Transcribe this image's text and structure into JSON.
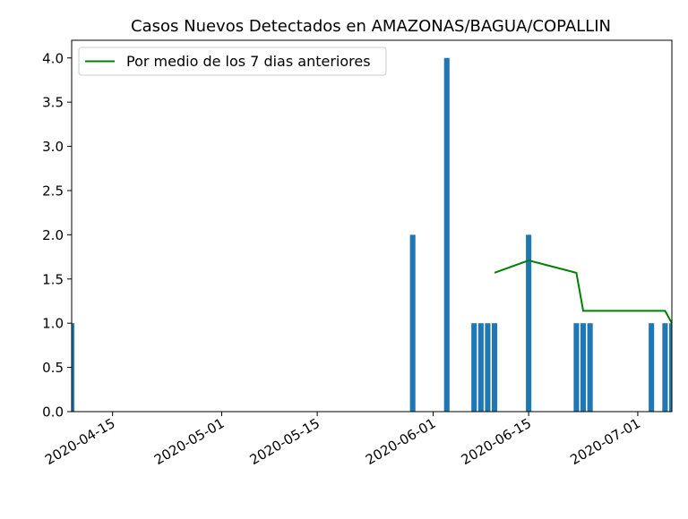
{
  "chart_data": {
    "type": "bar",
    "title": "Casos Nuevos Detectados en AMAZONAS/BAGUA/COPALLIN",
    "xlabel": "",
    "ylabel": "",
    "x_range": [
      "2020-04-09",
      "2020-07-06"
    ],
    "ylim": [
      0,
      4.2
    ],
    "y_ticks": [
      0.0,
      0.5,
      1.0,
      1.5,
      2.0,
      2.5,
      3.0,
      3.5,
      4.0
    ],
    "y_tick_labels": [
      "0.0",
      "0.5",
      "1.0",
      "1.5",
      "2.0",
      "2.5",
      "3.0",
      "3.5",
      "4.0"
    ],
    "x_ticks": [
      "2020-04-15",
      "2020-05-01",
      "2020-05-15",
      "2020-06-01",
      "2020-06-15",
      "2020-07-01"
    ],
    "x_tick_labels": [
      "2020-04-15",
      "2020-05-01",
      "2020-05-15",
      "2020-06-01",
      "2020-06-15",
      "2020-07-01"
    ],
    "grid": false,
    "legend_position": "top-left",
    "series": [
      {
        "name": "",
        "type": "bar",
        "color": "#1f77b4",
        "points": [
          {
            "x": "2020-04-09",
            "y": 1
          },
          {
            "x": "2020-05-29",
            "y": 2
          },
          {
            "x": "2020-06-03",
            "y": 4
          },
          {
            "x": "2020-06-07",
            "y": 1
          },
          {
            "x": "2020-06-08",
            "y": 1
          },
          {
            "x": "2020-06-09",
            "y": 1
          },
          {
            "x": "2020-06-10",
            "y": 1
          },
          {
            "x": "2020-06-15",
            "y": 2
          },
          {
            "x": "2020-06-22",
            "y": 1
          },
          {
            "x": "2020-06-23",
            "y": 1
          },
          {
            "x": "2020-06-24",
            "y": 1
          },
          {
            "x": "2020-07-03",
            "y": 1
          },
          {
            "x": "2020-07-05",
            "y": 1
          },
          {
            "x": "2020-07-06",
            "y": 1
          }
        ]
      },
      {
        "name": "Por medio de los 7 dias anteriores",
        "type": "line",
        "color": "#008000",
        "points": [
          {
            "x": "2020-06-10",
            "y": 1.57
          },
          {
            "x": "2020-06-15",
            "y": 1.71
          },
          {
            "x": "2020-06-22",
            "y": 1.57
          },
          {
            "x": "2020-06-23",
            "y": 1.14
          },
          {
            "x": "2020-07-05",
            "y": 1.14
          },
          {
            "x": "2020-07-06",
            "y": 1.0
          }
        ]
      }
    ]
  }
}
